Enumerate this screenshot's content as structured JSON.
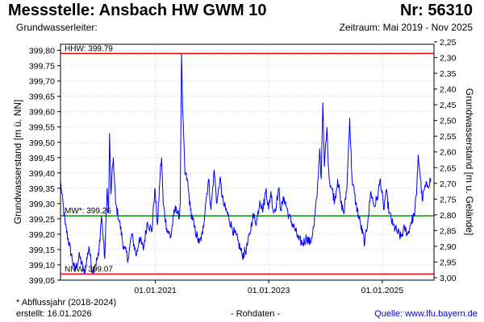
{
  "header": {
    "title": "Messstelle: Ansbach HW GWM 10",
    "station_number": "Nr: 56310",
    "aquifer": "Grundwasserleiter:",
    "period": "Zeitraum: Mai 2019 - Nov 2025"
  },
  "footer": {
    "footnote": "* Abflussjahr (2018-2024)",
    "created": "erstellt:  16.01.2026",
    "data_type": "- Rohdaten -",
    "source": "Quelle: www.lfu.bayern.de"
  },
  "colors": {
    "series": "#0000ff",
    "extreme_lines": "#ff0000",
    "mean_line": "#009900",
    "grid": "#cccccc",
    "plot_border": "#000000"
  },
  "chart_data": {
    "type": "line",
    "ylabel_left": "Grundwasserstand [m ü. NN]",
    "ylabel_right": "Grundwasserstand [m u. Gelände]",
    "ylim_left": [
      399.05,
      399.82
    ],
    "ylim_right": [
      2.25,
      3.0
    ],
    "xlim": [
      "2019-05-01",
      "2025-11-30"
    ],
    "left_ticks": [
      "399,80",
      "399,75",
      "399,70",
      "399,65",
      "399,60",
      "399,55",
      "399,50",
      "399,45",
      "399,40",
      "399,35",
      "399,30",
      "399,25",
      "399,20",
      "399,15",
      "399,10",
      "399,05"
    ],
    "left_tick_values": [
      399.8,
      399.75,
      399.7,
      399.65,
      399.6,
      399.55,
      399.5,
      399.45,
      399.4,
      399.35,
      399.3,
      399.25,
      399.2,
      399.15,
      399.1,
      399.05
    ],
    "right_ticks": [
      "2,25",
      "2,30",
      "2,35",
      "2,40",
      "2,45",
      "2,50",
      "2,55",
      "2,60",
      "2,65",
      "2,70",
      "2,75",
      "2,80",
      "2,85",
      "2,90",
      "2,95",
      "3,00"
    ],
    "right_tick_values": [
      2.25,
      2.3,
      2.35,
      2.4,
      2.45,
      2.5,
      2.55,
      2.6,
      2.65,
      2.7,
      2.75,
      2.8,
      2.85,
      2.9,
      2.95,
      3.0
    ],
    "x_ticks": [
      {
        "label": "01.01.2021",
        "date": "2021-01-01"
      },
      {
        "label": "01.01.2023",
        "date": "2023-01-01"
      },
      {
        "label": "01.01.2025",
        "date": "2025-01-01"
      }
    ],
    "reference_lines": [
      {
        "name": "HHW",
        "label": "HHW: 399.79",
        "value": 399.79,
        "color": "#ff0000"
      },
      {
        "name": "MW",
        "label": "MW*: 399.26",
        "value": 399.26,
        "color": "#009900"
      },
      {
        "name": "NNW",
        "label": "NNW: 399.07",
        "value": 399.07,
        "color": "#ff0000"
      }
    ],
    "grid": true,
    "series": [
      {
        "color": "#0000ff",
        "points": [
          [
            "2019-05-01",
            399.37
          ],
          [
            "2019-06-01",
            399.23
          ],
          [
            "2019-07-15",
            399.12
          ],
          [
            "2019-08-01",
            399.08
          ],
          [
            "2019-09-01",
            399.13
          ],
          [
            "2019-10-01",
            399.07
          ],
          [
            "2019-11-01",
            399.16
          ],
          [
            "2019-11-20",
            399.08
          ],
          [
            "2019-12-10",
            399.1
          ],
          [
            "2020-01-01",
            399.13
          ],
          [
            "2020-01-20",
            399.26
          ],
          [
            "2020-02-10",
            399.12
          ],
          [
            "2020-02-25",
            399.35
          ],
          [
            "2020-03-05",
            399.27
          ],
          [
            "2020-03-12",
            399.53
          ],
          [
            "2020-03-20",
            399.33
          ],
          [
            "2020-04-05",
            399.45
          ],
          [
            "2020-04-20",
            399.3
          ],
          [
            "2020-05-15",
            399.24
          ],
          [
            "2020-06-10",
            399.16
          ],
          [
            "2020-07-10",
            399.12
          ],
          [
            "2020-08-01",
            399.2
          ],
          [
            "2020-09-01",
            399.13
          ],
          [
            "2020-09-20",
            399.19
          ],
          [
            "2020-10-15",
            399.15
          ],
          [
            "2020-11-10",
            399.24
          ],
          [
            "2020-12-10",
            399.21
          ],
          [
            "2020-12-28",
            399.35
          ],
          [
            "2021-01-15",
            399.23
          ],
          [
            "2021-02-01",
            399.4
          ],
          [
            "2021-02-10",
            399.45
          ],
          [
            "2021-02-20",
            399.3
          ],
          [
            "2021-03-15",
            399.22
          ],
          [
            "2021-04-10",
            399.19
          ],
          [
            "2021-04-28",
            399.26
          ],
          [
            "2021-05-15",
            399.29
          ],
          [
            "2021-06-01",
            399.25
          ],
          [
            "2021-06-10",
            399.3
          ],
          [
            "2021-06-18",
            399.79
          ],
          [
            "2021-06-26",
            399.6
          ],
          [
            "2021-07-10",
            399.4
          ],
          [
            "2021-07-25",
            399.38
          ],
          [
            "2021-08-15",
            399.28
          ],
          [
            "2021-09-10",
            399.22
          ],
          [
            "2021-10-10",
            399.17
          ],
          [
            "2021-11-01",
            399.2
          ],
          [
            "2021-11-20",
            399.3
          ],
          [
            "2021-12-10",
            399.38
          ],
          [
            "2021-12-25",
            399.28
          ],
          [
            "2022-01-15",
            399.41
          ],
          [
            "2022-02-01",
            399.3
          ],
          [
            "2022-02-20",
            399.38
          ],
          [
            "2022-03-15",
            399.3
          ],
          [
            "2022-04-15",
            399.26
          ],
          [
            "2022-05-10",
            399.22
          ],
          [
            "2022-06-15",
            399.18
          ],
          [
            "2022-07-15",
            399.13
          ],
          [
            "2022-08-10",
            399.15
          ],
          [
            "2022-09-01",
            399.2
          ],
          [
            "2022-09-20",
            399.26
          ],
          [
            "2022-10-15",
            399.24
          ],
          [
            "2022-11-05",
            399.31
          ],
          [
            "2022-11-25",
            399.28
          ],
          [
            "2022-12-15",
            399.35
          ],
          [
            "2022-12-31",
            399.28
          ],
          [
            "2023-01-15",
            399.34
          ],
          [
            "2023-02-01",
            399.27
          ],
          [
            "2023-02-20",
            399.3
          ],
          [
            "2023-03-05",
            399.35
          ],
          [
            "2023-03-20",
            399.28
          ],
          [
            "2023-04-10",
            399.32
          ],
          [
            "2023-05-10",
            399.26
          ],
          [
            "2023-06-15",
            399.22
          ],
          [
            "2023-07-15",
            399.18
          ],
          [
            "2023-08-10",
            399.17
          ],
          [
            "2023-09-01",
            399.19
          ],
          [
            "2023-09-25",
            399.17
          ],
          [
            "2023-10-20",
            399.23
          ],
          [
            "2023-11-10",
            399.34
          ],
          [
            "2023-11-25",
            399.48
          ],
          [
            "2023-12-05",
            399.38
          ],
          [
            "2023-12-15",
            399.63
          ],
          [
            "2023-12-25",
            399.42
          ],
          [
            "2024-01-10",
            399.55
          ],
          [
            "2024-01-25",
            399.38
          ],
          [
            "2024-02-10",
            399.35
          ],
          [
            "2024-03-01",
            399.31
          ],
          [
            "2024-03-20",
            399.38
          ],
          [
            "2024-04-10",
            399.3
          ],
          [
            "2024-05-01",
            399.27
          ],
          [
            "2024-05-20",
            399.37
          ],
          [
            "2024-06-05",
            399.58
          ],
          [
            "2024-06-20",
            399.38
          ],
          [
            "2024-07-15",
            399.3
          ],
          [
            "2024-08-15",
            399.23
          ],
          [
            "2024-09-10",
            399.17
          ],
          [
            "2024-10-01",
            399.25
          ],
          [
            "2024-10-20",
            399.34
          ],
          [
            "2024-11-10",
            399.29
          ],
          [
            "2024-12-01",
            399.32
          ],
          [
            "2024-12-20",
            399.38
          ],
          [
            "2025-01-10",
            399.28
          ],
          [
            "2025-01-25",
            399.34
          ],
          [
            "2025-02-15",
            399.27
          ],
          [
            "2025-03-10",
            399.23
          ],
          [
            "2025-04-05",
            399.21
          ],
          [
            "2025-05-01",
            399.19
          ],
          [
            "2025-05-25",
            399.22
          ],
          [
            "2025-06-15",
            399.2
          ],
          [
            "2025-07-05",
            399.24
          ],
          [
            "2025-07-25",
            399.26
          ],
          [
            "2025-08-10",
            399.33
          ],
          [
            "2025-08-20",
            399.46
          ],
          [
            "2025-09-01",
            399.4
          ],
          [
            "2025-09-15",
            399.31
          ],
          [
            "2025-10-01",
            399.35
          ],
          [
            "2025-10-20",
            399.36
          ],
          [
            "2025-11-10",
            399.38
          ]
        ]
      }
    ]
  }
}
